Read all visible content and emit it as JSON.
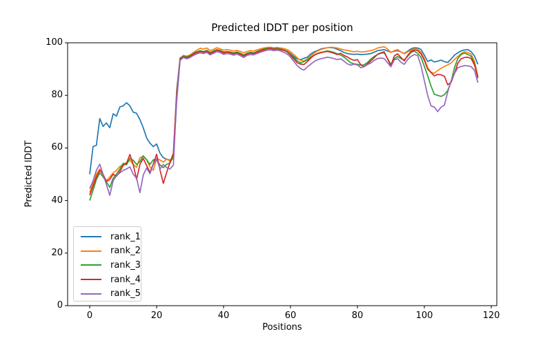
{
  "figure": {
    "title": "Predicted lDDT per position",
    "xlabel": "Positions",
    "ylabel": "Predicted lDDT"
  },
  "chart_data": {
    "type": "line",
    "title": "Predicted lDDT per position",
    "xlabel": "Positions",
    "ylabel": "Predicted lDDT",
    "xlim": [
      -6.6,
      121.65
    ],
    "ylim": [
      0,
      100
    ],
    "xticks": [
      0,
      20,
      40,
      60,
      80,
      100,
      120
    ],
    "yticks": [
      0,
      20,
      40,
      60,
      80,
      100
    ],
    "grid": false,
    "legend_location": "lower left",
    "x_start": 0,
    "x_step": 1,
    "n_points": 117,
    "series": [
      {
        "name": "rank_1",
        "color": "#1f77b4",
        "values": [
          50.0,
          60.5,
          61.0,
          71.2,
          68.2,
          69.5,
          67.7,
          73.0,
          72.1,
          75.6,
          76.0,
          77.2,
          76.0,
          73.6,
          73.2,
          70.8,
          67.7,
          63.8,
          61.8,
          60.5,
          61.5,
          58.0,
          56.3,
          55.7,
          55.4,
          55.9,
          78.0,
          93.5,
          94.8,
          94.5,
          95.0,
          95.8,
          96.4,
          96.8,
          96.4,
          96.9,
          96.0,
          96.7,
          97.3,
          96.9,
          96.3,
          96.6,
          96.4,
          96.1,
          96.4,
          95.9,
          95.2,
          95.9,
          96.2,
          96.1,
          96.6,
          97.1,
          97.5,
          97.8,
          97.9,
          97.6,
          97.8,
          97.5,
          97.2,
          96.7,
          95.9,
          94.8,
          93.9,
          93.6,
          94.1,
          94.5,
          95.7,
          96.5,
          97.0,
          97.6,
          97.9,
          98.1,
          98.2,
          98.0,
          97.5,
          97.0,
          96.3,
          95.9,
          95.7,
          95.6,
          95.7,
          95.5,
          95.6,
          95.7,
          95.9,
          96.4,
          97.0,
          97.2,
          97.4,
          96.9,
          96.4,
          96.8,
          97.0,
          96.5,
          95.9,
          96.8,
          97.7,
          98.1,
          98.0,
          97.5,
          95.3,
          92.9,
          93.5,
          92.7,
          93.0,
          93.4,
          92.8,
          92.5,
          93.8,
          95.3,
          96.2,
          96.9,
          97.3,
          97.4,
          96.6,
          95.0,
          91.8
        ]
      },
      {
        "name": "rank_2",
        "color": "#ff7f0e",
        "values": [
          43.0,
          46.5,
          50.0,
          52.0,
          49.5,
          47.5,
          49.0,
          50.5,
          51.5,
          53.0,
          53.5,
          54.5,
          55.3,
          53.7,
          52.6,
          56.3,
          56.8,
          55.5,
          52.8,
          51.5,
          56.0,
          55.4,
          54.6,
          55.8,
          55.0,
          56.3,
          80.0,
          94.0,
          95.2,
          94.9,
          95.4,
          96.3,
          97.2,
          97.9,
          97.6,
          98.0,
          97.0,
          97.5,
          98.1,
          97.7,
          97.2,
          97.4,
          97.2,
          96.9,
          97.1,
          96.7,
          96.2,
          96.7,
          97.0,
          96.9,
          97.3,
          97.7,
          98.0,
          98.2,
          98.3,
          98.1,
          98.2,
          98.0,
          97.8,
          97.4,
          96.6,
          95.5,
          94.3,
          93.3,
          93.1,
          93.8,
          95.0,
          96.0,
          96.8,
          97.4,
          97.8,
          98.1,
          98.3,
          98.2,
          98.0,
          97.6,
          97.3,
          97.1,
          96.8,
          96.6,
          96.8,
          96.5,
          96.6,
          96.8,
          97.0,
          97.4,
          98.0,
          98.3,
          98.5,
          97.6,
          96.3,
          97.0,
          97.4,
          96.5,
          95.8,
          96.5,
          97.2,
          97.8,
          97.5,
          96.5,
          94.0,
          90.5,
          88.8,
          88.4,
          89.5,
          90.3,
          91.0,
          91.6,
          92.3,
          93.6,
          94.8,
          95.9,
          96.6,
          96.3,
          95.6,
          93.0,
          87.2
        ]
      },
      {
        "name": "rank_3",
        "color": "#2ca02c",
        "values": [
          40.0,
          44.0,
          48.0,
          50.5,
          49.0,
          47.0,
          45.0,
          48.5,
          50.0,
          52.0,
          54.2,
          53.6,
          56.0,
          55.3,
          53.7,
          54.8,
          57.0,
          55.5,
          53.7,
          55.5,
          55.4,
          53.5,
          52.5,
          53.8,
          54.2,
          57.0,
          82.0,
          94.2,
          95.0,
          94.6,
          95.1,
          96.0,
          96.6,
          97.0,
          96.7,
          97.1,
          96.3,
          96.9,
          97.4,
          97.1,
          96.5,
          96.7,
          96.5,
          96.2,
          96.5,
          96.0,
          95.4,
          96.0,
          96.4,
          96.2,
          96.7,
          97.2,
          97.6,
          97.9,
          98.0,
          97.7,
          97.9,
          97.6,
          97.3,
          96.8,
          95.8,
          94.4,
          93.1,
          92.4,
          92.8,
          93.5,
          94.4,
          95.3,
          95.9,
          96.3,
          96.6,
          96.9,
          96.7,
          96.3,
          95.8,
          95.3,
          94.6,
          93.5,
          92.4,
          92.0,
          91.8,
          91.5,
          91.6,
          92.5,
          93.8,
          94.8,
          95.5,
          96.0,
          96.2,
          94.0,
          91.8,
          94.0,
          94.8,
          94.0,
          93.5,
          94.8,
          96.3,
          96.8,
          96.0,
          94.5,
          91.0,
          87.5,
          83.5,
          80.4,
          80.0,
          79.6,
          80.3,
          81.8,
          85.2,
          90.5,
          94.0,
          95.5,
          96.1,
          95.6,
          94.8,
          92.0,
          86.5
        ]
      },
      {
        "name": "rank_4",
        "color": "#d62728",
        "values": [
          42.0,
          45.5,
          49.0,
          51.5,
          50.0,
          47.2,
          48.0,
          50.0,
          49.2,
          51.0,
          53.3,
          54.2,
          57.5,
          53.7,
          48.0,
          53.7,
          56.0,
          53.3,
          50.7,
          54.0,
          57.6,
          51.6,
          46.5,
          50.7,
          54.6,
          58.0,
          81.0,
          93.8,
          94.7,
          94.2,
          94.8,
          95.7,
          96.3,
          96.7,
          96.4,
          96.8,
          95.9,
          96.5,
          97.1,
          96.8,
          96.1,
          96.4,
          96.2,
          95.8,
          96.2,
          95.6,
          94.9,
          95.7,
          96.0,
          95.9,
          96.4,
          96.9,
          97.3,
          97.7,
          97.8,
          97.5,
          97.7,
          97.4,
          97.1,
          96.5,
          95.3,
          93.8,
          92.4,
          91.9,
          91.7,
          92.8,
          94.1,
          95.2,
          95.8,
          96.2,
          96.5,
          96.7,
          96.4,
          96.0,
          95.5,
          96.0,
          95.2,
          94.6,
          93.8,
          93.3,
          93.6,
          91.6,
          90.9,
          92.0,
          93.1,
          94.3,
          95.6,
          96.2,
          96.6,
          93.8,
          91.3,
          95.0,
          95.8,
          94.4,
          93.1,
          95.2,
          96.7,
          97.3,
          97.0,
          95.8,
          93.3,
          90.0,
          88.7,
          87.4,
          88.0,
          87.8,
          87.3,
          84.0,
          85.0,
          88.3,
          92.2,
          93.9,
          94.4,
          94.5,
          94.0,
          91.5,
          86.9
        ]
      },
      {
        "name": "rank_5",
        "color": "#9467bd",
        "values": [
          44.5,
          47.5,
          51.5,
          53.8,
          50.0,
          46.0,
          42.0,
          47.5,
          49.5,
          50.5,
          51.5,
          52.0,
          52.8,
          50.0,
          48.5,
          43.0,
          49.7,
          52.4,
          50.2,
          53.7,
          55.9,
          52.0,
          53.7,
          52.5,
          52.0,
          53.5,
          79.0,
          93.3,
          94.4,
          93.9,
          94.4,
          95.2,
          95.8,
          96.2,
          95.9,
          96.3,
          95.4,
          96.0,
          96.6,
          96.3,
          95.6,
          95.9,
          95.7,
          95.3,
          95.7,
          95.1,
          94.4,
          95.2,
          95.5,
          95.4,
          95.9,
          96.4,
          96.8,
          97.2,
          97.3,
          97.0,
          97.2,
          96.9,
          96.4,
          95.7,
          94.6,
          92.9,
          91.3,
          90.2,
          89.6,
          90.8,
          91.8,
          92.8,
          93.5,
          93.9,
          94.2,
          94.5,
          94.3,
          94.0,
          93.6,
          93.9,
          93.0,
          92.0,
          91.5,
          91.9,
          91.6,
          90.5,
          90.9,
          91.7,
          92.3,
          93.3,
          94.0,
          94.2,
          94.0,
          92.4,
          90.9,
          93.5,
          94.0,
          92.6,
          91.8,
          93.6,
          94.8,
          95.5,
          95.2,
          91.3,
          85.6,
          80.0,
          76.0,
          75.5,
          73.8,
          75.5,
          76.3,
          81.3,
          85.6,
          88.3,
          90.5,
          91.0,
          91.3,
          91.2,
          90.9,
          89.5,
          84.8
        ]
      }
    ]
  }
}
